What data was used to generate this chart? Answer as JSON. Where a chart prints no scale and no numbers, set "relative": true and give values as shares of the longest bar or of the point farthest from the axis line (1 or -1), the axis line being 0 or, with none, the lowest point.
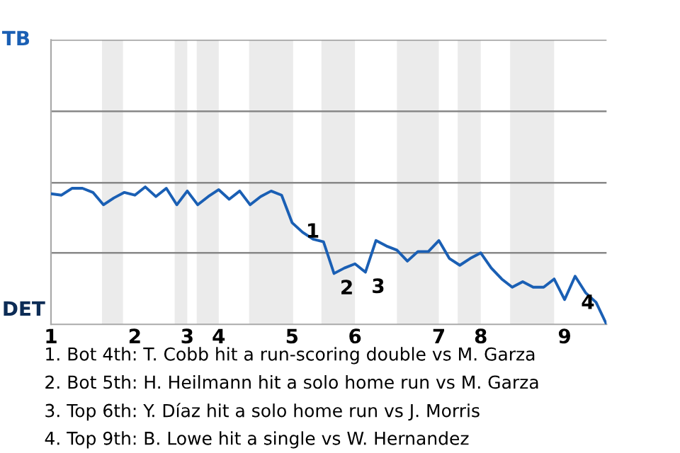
{
  "chart_data": {
    "type": "line",
    "relative": true,
    "categories": [
      "1",
      null,
      null,
      null,
      null,
      null,
      null,
      null,
      "2",
      null,
      null,
      null,
      null,
      "3",
      null,
      null,
      "4",
      null,
      null,
      null,
      null,
      null,
      null,
      "5",
      null,
      null,
      null,
      null,
      null,
      "6",
      null,
      null,
      null,
      null,
      null,
      null,
      null,
      "7",
      null,
      null,
      null,
      "8",
      null,
      null,
      null,
      null,
      null,
      null,
      null,
      "9",
      null,
      null,
      null,
      null
    ],
    "series": [
      {
        "color": "#1a5fb4",
        "values": [
          0.95,
          0.94,
          0.99,
          0.99,
          0.96,
          0.87,
          0.92,
          0.96,
          0.94,
          1,
          0.93,
          0.99,
          0.87,
          0.97,
          0.87,
          0.93,
          0.98,
          0.91,
          0.97,
          0.87,
          0.93,
          0.97,
          0.94,
          0.74,
          0.67,
          0.62,
          0.6,
          0.37,
          0.41,
          0.44,
          0.38,
          0.61,
          0.57,
          0.54,
          0.46,
          0.53,
          0.53,
          0.61,
          0.48,
          0.43,
          0.48,
          0.52,
          0.41,
          0.33,
          0.27,
          0.31,
          0.27,
          0.27,
          0.33,
          0.18,
          0.35,
          0.23,
          0.16,
          0
        ]
      }
    ],
    "ref_lines": [
      {
        "axis": "y",
        "value": 0.52,
        "color": "#888888"
      },
      {
        "axis": "y",
        "value": 1.03,
        "color": "#888888"
      },
      {
        "axis": "y",
        "value": 1.55,
        "color": "#888888"
      },
      {
        "axis": "y",
        "value": 2.07,
        "color": "#888888"
      }
    ],
    "marker": "none",
    "line_style": "solid",
    "annotations": [
      "TB",
      "DET",
      "1",
      "2",
      "3",
      "4",
      "1. Bot 4th: T. Cobb hit a run-scoring double vs M. Garza",
      "2. Bot 5th: H. Heilmann hit a solo home run vs M. Garza",
      "3. Top 6th: Y. Díaz hit a solo home run vs J. Morris",
      "4. Top 9th: B. Lowe hit a single vs W. Hernandez"
    ]
  }
}
